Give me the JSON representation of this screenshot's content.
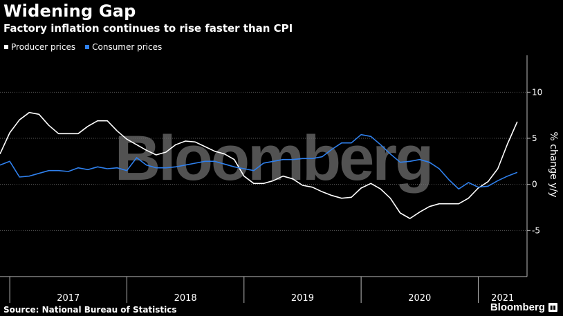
{
  "header": {
    "title": "Widening Gap",
    "subtitle": "Factory inflation continues to rise faster than CPI"
  },
  "legend": [
    {
      "name": "Producer prices",
      "color": "#ffffff"
    },
    {
      "name": "Consumer prices",
      "color": "#2f80ed"
    }
  ],
  "footer": {
    "source": "Source: National Bureau of Statistics",
    "brand": "Bloomberg",
    "brand_icon": "bloomberg-terminal-icon"
  },
  "watermark": "Bloomberg",
  "chart_data": {
    "type": "line",
    "ylabel": "% change y/y",
    "ylim": [
      -10,
      14
    ],
    "yticks": [
      -5,
      0,
      5,
      10
    ],
    "x_start": "2016-12",
    "x_end": "2021-06",
    "year_labels": [
      "2017",
      "2018",
      "2019",
      "2020",
      "2021"
    ],
    "grid": true,
    "legend_position": "top-left",
    "series": [
      {
        "name": "Producer prices",
        "color": "#ffffff",
        "x": [
          "2016-12",
          "2017-01",
          "2017-02",
          "2017-03",
          "2017-04",
          "2017-05",
          "2017-06",
          "2017-07",
          "2017-08",
          "2017-09",
          "2017-10",
          "2017-11",
          "2017-12",
          "2018-01",
          "2018-02",
          "2018-03",
          "2018-04",
          "2018-05",
          "2018-06",
          "2018-07",
          "2018-08",
          "2018-09",
          "2018-10",
          "2018-11",
          "2018-12",
          "2019-01",
          "2019-02",
          "2019-03",
          "2019-04",
          "2019-05",
          "2019-06",
          "2019-07",
          "2019-08",
          "2019-09",
          "2019-10",
          "2019-11",
          "2019-12",
          "2020-01",
          "2020-02",
          "2020-03",
          "2020-04",
          "2020-05",
          "2020-06",
          "2020-07",
          "2020-08",
          "2020-09",
          "2020-10",
          "2020-11",
          "2020-12",
          "2021-01",
          "2021-02",
          "2021-03",
          "2021-04",
          "2021-05"
        ],
        "values": [
          3.3,
          5.6,
          7.0,
          7.8,
          7.6,
          6.4,
          5.5,
          5.5,
          5.5,
          6.3,
          6.9,
          6.9,
          5.8,
          4.9,
          4.3,
          3.7,
          3.2,
          3.5,
          4.3,
          4.7,
          4.6,
          4.1,
          3.6,
          3.3,
          2.7,
          0.9,
          0.1,
          0.1,
          0.4,
          0.9,
          0.6,
          -0.1,
          -0.3,
          -0.8,
          -1.2,
          -1.5,
          -1.4,
          -0.4,
          0.1,
          -0.5,
          -1.5,
          -3.1,
          -3.7,
          -3.0,
          -2.4,
          -2.1,
          -2.1,
          -2.1,
          -1.5,
          -0.4,
          0.3,
          1.7,
          4.4,
          6.8
        ]
      },
      {
        "name": "Consumer prices",
        "color": "#2f80ed",
        "x": [
          "2016-12",
          "2017-01",
          "2017-02",
          "2017-03",
          "2017-04",
          "2017-05",
          "2017-06",
          "2017-07",
          "2017-08",
          "2017-09",
          "2017-10",
          "2017-11",
          "2017-12",
          "2018-01",
          "2018-02",
          "2018-03",
          "2018-04",
          "2018-05",
          "2018-06",
          "2018-07",
          "2018-08",
          "2018-09",
          "2018-10",
          "2018-11",
          "2018-12",
          "2019-01",
          "2019-02",
          "2019-03",
          "2019-04",
          "2019-05",
          "2019-06",
          "2019-07",
          "2019-08",
          "2019-09",
          "2019-10",
          "2019-11",
          "2019-12",
          "2020-01",
          "2020-02",
          "2020-03",
          "2020-04",
          "2020-05",
          "2020-06",
          "2020-07",
          "2020-08",
          "2020-09",
          "2020-10",
          "2020-11",
          "2020-12",
          "2021-01",
          "2021-02",
          "2021-03",
          "2021-04",
          "2021-05"
        ],
        "values": [
          2.1,
          2.5,
          0.8,
          0.9,
          1.2,
          1.5,
          1.5,
          1.4,
          1.8,
          1.6,
          1.9,
          1.7,
          1.8,
          1.5,
          2.9,
          2.1,
          1.8,
          1.8,
          1.9,
          2.1,
          2.3,
          2.5,
          2.5,
          2.2,
          1.9,
          1.7,
          1.5,
          2.3,
          2.5,
          2.7,
          2.7,
          2.8,
          2.8,
          3.0,
          3.8,
          4.5,
          4.5,
          5.4,
          5.2,
          4.3,
          3.3,
          2.4,
          2.5,
          2.7,
          2.4,
          1.7,
          0.5,
          -0.5,
          0.2,
          -0.3,
          -0.2,
          0.4,
          0.9,
          1.3
        ]
      }
    ]
  }
}
